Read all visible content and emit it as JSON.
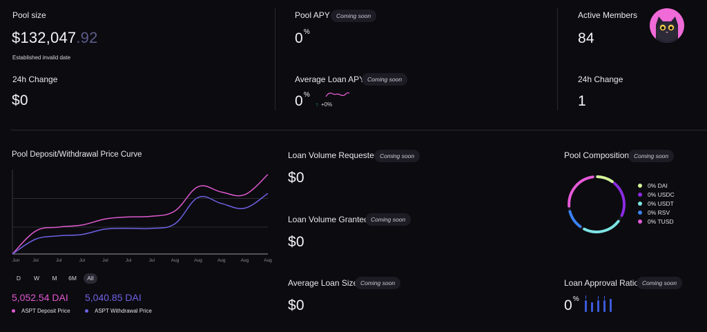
{
  "pool_size": {
    "label": "Pool size",
    "value_main": "$132,047",
    "value_cents": ".92",
    "established": "Established invalid date",
    "change_label": "24h Change",
    "change_value": "$0"
  },
  "pool_apy": {
    "label": "Pool APY",
    "badge": "Coming soon",
    "value": "0",
    "unit": "%",
    "avg_label": "Average Loan APY",
    "avg_badge": "Coming soon",
    "avg_value": "0",
    "avg_unit": "%",
    "avg_change": "+0%",
    "avg_change_arrow": "↑"
  },
  "members": {
    "label": "Active Members",
    "value": "84",
    "change_label": "24h Change",
    "change_value": "1",
    "avatar_icon": "cat-avatar-icon"
  },
  "price_curve": {
    "title": "Pool Deposit/Withdrawal Price Curve",
    "timeframes": [
      "D",
      "W",
      "M",
      "6M",
      "All"
    ],
    "active_timeframe": "All",
    "deposit_value": "5,052.54 DAI",
    "withdrawal_value": "5,040.85 DAI",
    "deposit_label": "ASPT Deposit Price",
    "withdrawal_label": "ASPT Withdrawal Price",
    "deposit_color": "#e05ad0",
    "withdrawal_color": "#6f63e6"
  },
  "chart_data": {
    "type": "line",
    "x": [
      "Jun",
      "Jul",
      "Jul",
      "Jul",
      "Jul",
      "Jul",
      "Jul",
      "Aug",
      "Aug",
      "Aug",
      "Aug",
      "Aug"
    ],
    "series": [
      {
        "name": "ASPT Deposit Price",
        "values": [
          0,
          34,
          40,
          43,
          52,
          55,
          56,
          64,
          100,
          92,
          88,
          118
        ]
      },
      {
        "name": "ASPT Withdrawal Price",
        "values": [
          0,
          22,
          27,
          29,
          37,
          38,
          38,
          45,
          84,
          75,
          68,
          90
        ]
      }
    ],
    "ylim": [
      0,
      125
    ],
    "grid": true
  },
  "loans": {
    "requested_label": "Loan Volume Requested",
    "requested_badge": "Coming soon",
    "requested_value": "$0",
    "granted_label": "Loan Volume Granted",
    "granted_badge": "Coming soon",
    "granted_value": "$0",
    "avg_size_label": "Average Loan Size",
    "avg_size_badge": "Coming soon",
    "avg_size_value": "$0"
  },
  "composition": {
    "title": "Pool Composition",
    "badge": "Coming soon",
    "items": [
      {
        "label": "0% DAI",
        "color": "#d5f59a"
      },
      {
        "label": "0% USDC",
        "color": "#8a2be2"
      },
      {
        "label": "0% USDT",
        "color": "#7de3e3"
      },
      {
        "label": "0% RSV",
        "color": "#3b82f6"
      },
      {
        "label": "0% TUSD",
        "color": "#e45ad6"
      }
    ]
  },
  "approval": {
    "label": "Loan Approval Ratio",
    "badge": "Coming soon",
    "value": "0",
    "unit": "%"
  }
}
